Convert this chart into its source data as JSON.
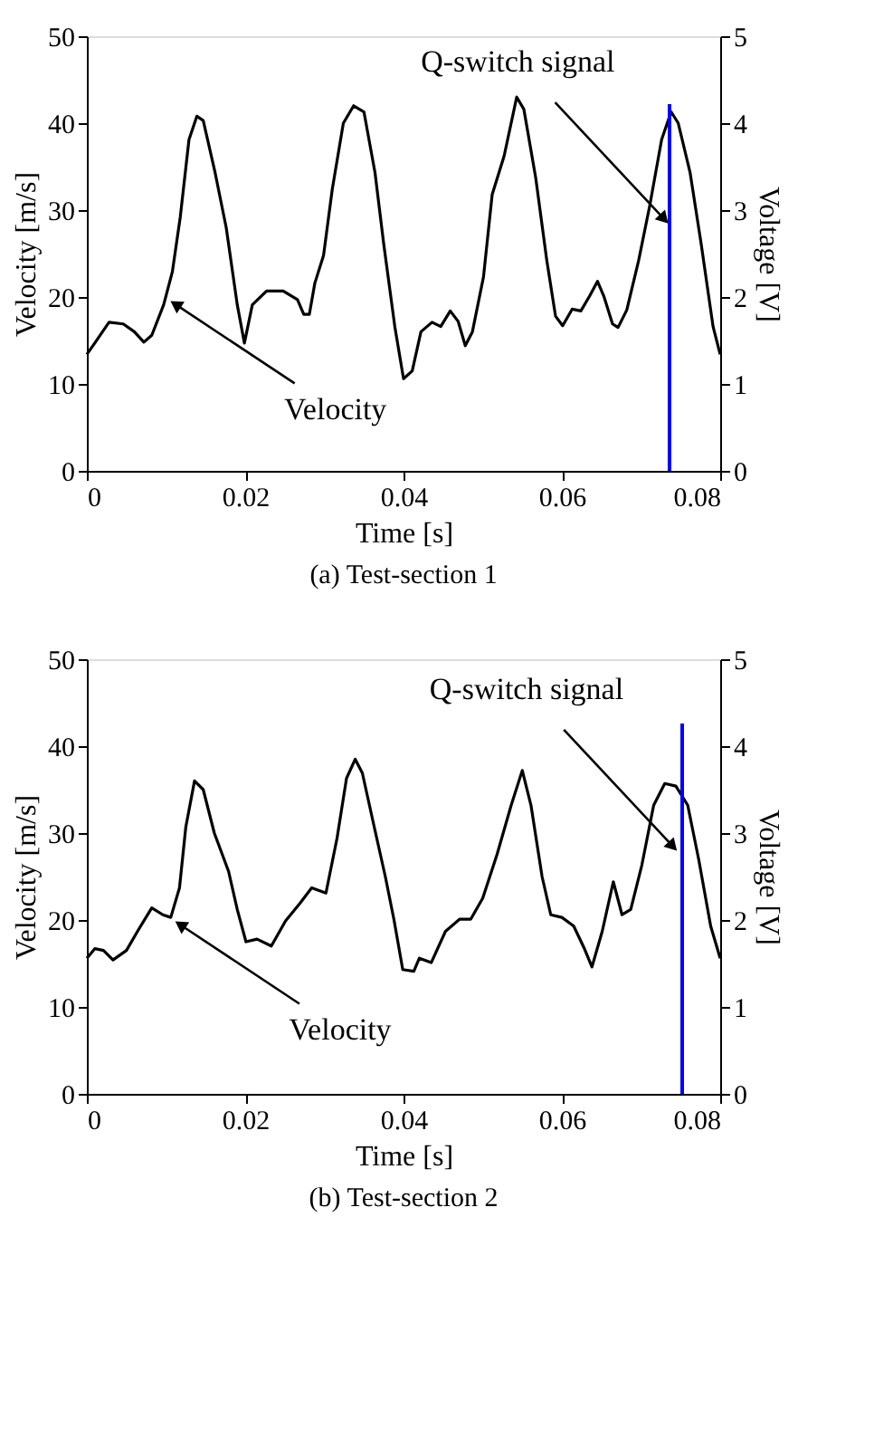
{
  "chart_data": [
    {
      "type": "line",
      "title": "(a) Test-section 1",
      "xlabel": "Time [s]",
      "ylabel": "Velocity [m/s]",
      "y2label": "Voltage [V]",
      "xlim": [
        0,
        0.08
      ],
      "xticks": [
        0,
        0.02,
        0.04,
        0.06,
        0.08
      ],
      "ylim": [
        0,
        50
      ],
      "yticks": [
        0,
        10,
        20,
        30,
        40,
        50
      ],
      "y2lim": [
        0,
        5
      ],
      "y2ticks": [
        0,
        1,
        2,
        3,
        4,
        5
      ],
      "grid": false,
      "legend": false,
      "marker": "none",
      "line_style": "solid",
      "series": [
        {
          "color": "#000000",
          "x": [
            0,
            0.001,
            0.0028,
            0.0046,
            0.006,
            0.0072,
            0.0082,
            0.0097,
            0.0108,
            0.0118,
            0.0129,
            0.0139,
            0.0147,
            0.0162,
            0.0176,
            0.019,
            0.0199,
            0.0209,
            0.0227,
            0.0248,
            0.0266,
            0.0274,
            0.0281,
            0.0288,
            0.0299,
            0.031,
            0.0324,
            0.0337,
            0.035,
            0.0364,
            0.0375,
            0.0389,
            0.04,
            0.0411,
            0.0422,
            0.0436,
            0.0447,
            0.0459,
            0.0469,
            0.0478,
            0.0487,
            0.0501,
            0.0512,
            0.0527,
            0.0543,
            0.0552,
            0.0567,
            0.0581,
            0.0592,
            0.0601,
            0.0613,
            0.0624,
            0.0635,
            0.0645,
            0.0653,
            0.0664,
            0.0671,
            0.0682,
            0.0697,
            0.0711,
            0.0726,
            0.0738,
            0.0747,
            0.0762,
            0.0776,
            0.0791,
            0.08
          ],
          "values": [
            13.4,
            14.7,
            17.1,
            16.9,
            16.0,
            14.8,
            15.6,
            19.1,
            22.9,
            29.2,
            38.1,
            40.8,
            40.3,
            34.3,
            28.0,
            19.1,
            14.7,
            19.1,
            20.7,
            20.7,
            19.7,
            18.0,
            18.0,
            21.6,
            24.8,
            32.4,
            40.0,
            42.0,
            41.3,
            34.3,
            26.1,
            16.6,
            10.6,
            11.5,
            16.0,
            17.1,
            16.6,
            18.4,
            17.2,
            14.4,
            16.0,
            22.3,
            31.8,
            36.2,
            43.0,
            41.6,
            33.7,
            24.2,
            17.8,
            16.7,
            18.6,
            18.4,
            20.1,
            21.8,
            20.1,
            16.9,
            16.5,
            18.5,
            24.2,
            30.5,
            38.1,
            41.3,
            40.0,
            34.3,
            26.1,
            16.6,
            13.4
          ]
        },
        {
          "color": "#0000ff",
          "axis": "y2",
          "x": [
            0.0736,
            0.0736
          ],
          "values": [
            0,
            4.22
          ]
        }
      ],
      "annotations": [
        {
          "text": "Velocity",
          "x": 0.0108,
          "y": 19.4
        },
        {
          "text": "Q-switch signal",
          "x": 0.0733,
          "y": 28.6
        }
      ]
    },
    {
      "type": "line",
      "title": "(b) Test-section 2",
      "xlabel": "Time [s]",
      "ylabel": "Velocity [m/s]",
      "y2label": "Voltage [V]",
      "xlim": [
        0,
        0.08
      ],
      "xticks": [
        0,
        0.02,
        0.04,
        0.06,
        0.08
      ],
      "ylim": [
        0,
        50
      ],
      "yticks": [
        0,
        10,
        20,
        30,
        40,
        50
      ],
      "y2lim": [
        0,
        5
      ],
      "y2ticks": [
        0,
        1,
        2,
        3,
        4,
        5
      ],
      "grid": false,
      "legend": false,
      "marker": "none",
      "line_style": "solid",
      "series": [
        {
          "color": "#000000",
          "x": [
            0,
            0.001,
            0.0021,
            0.0033,
            0.005,
            0.0064,
            0.0082,
            0.0096,
            0.0106,
            0.0117,
            0.0125,
            0.0136,
            0.0147,
            0.0161,
            0.0179,
            0.019,
            0.0201,
            0.0215,
            0.0233,
            0.0251,
            0.0269,
            0.0284,
            0.0302,
            0.0316,
            0.0328,
            0.0339,
            0.0348,
            0.0363,
            0.0377,
            0.0388,
            0.0399,
            0.0413,
            0.042,
            0.0435,
            0.0453,
            0.0471,
            0.0485,
            0.05,
            0.0518,
            0.0536,
            0.055,
            0.0561,
            0.0575,
            0.0586,
            0.06,
            0.0615,
            0.0628,
            0.0638,
            0.0651,
            0.0665,
            0.0676,
            0.0687,
            0.0701,
            0.0716,
            0.073,
            0.0744,
            0.0759,
            0.0773,
            0.0788,
            0.08
          ],
          "values": [
            15.6,
            16.7,
            16.5,
            15.4,
            16.5,
            18.7,
            21.4,
            20.6,
            20.3,
            23.7,
            30.7,
            36.0,
            35.0,
            30.0,
            25.6,
            21.2,
            17.5,
            17.8,
            17.0,
            19.9,
            21.9,
            23.7,
            23.1,
            29.4,
            36.3,
            38.5,
            36.9,
            30.7,
            25.0,
            20.0,
            14.3,
            14.1,
            15.6,
            15.1,
            18.7,
            20.1,
            20.1,
            22.5,
            27.5,
            33.2,
            37.2,
            33.2,
            25.0,
            20.6,
            20.3,
            19.3,
            16.8,
            14.6,
            18.7,
            24.4,
            20.6,
            21.2,
            26.3,
            33.2,
            35.7,
            35.4,
            33.2,
            26.9,
            19.3,
            15.6
          ]
        },
        {
          "color": "#0000ff",
          "axis": "y2",
          "x": [
            0.0752,
            0.0752
          ],
          "values": [
            0,
            4.26
          ]
        }
      ],
      "annotations": [
        {
          "text": "Velocity",
          "x": 0.0114,
          "y": 19.7
        },
        {
          "text": "Q-switch signal",
          "x": 0.0744,
          "y": 28.1
        }
      ]
    }
  ]
}
